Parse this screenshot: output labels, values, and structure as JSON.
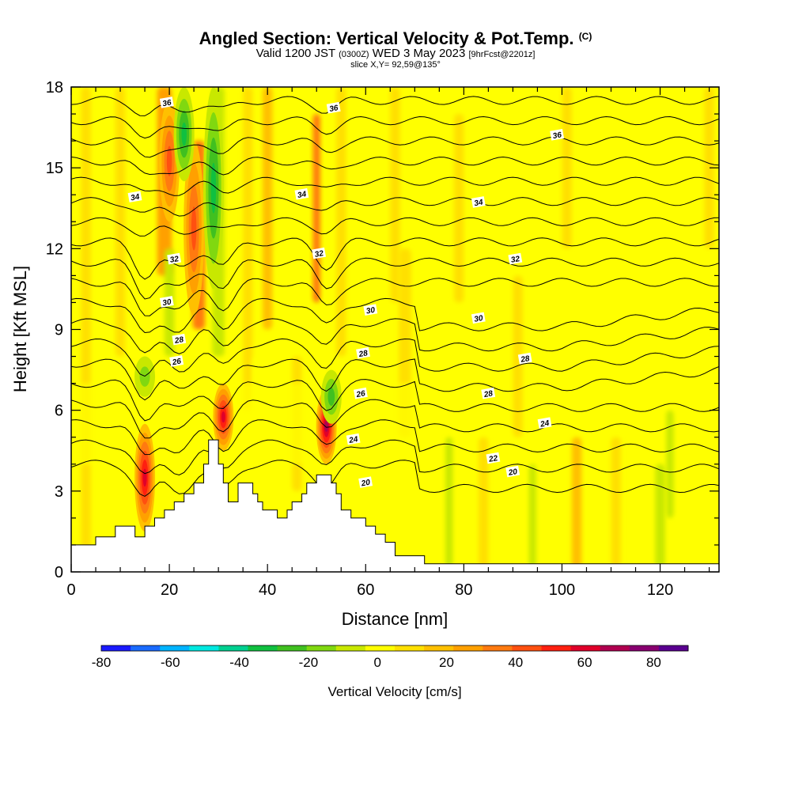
{
  "header": {
    "title": "Angled Section: Vertical Velocity & Pot.Temp.",
    "title_units": "(C)",
    "valid_prefix": "Valid 1200 JST",
    "valid_zulu": "(0300Z)",
    "valid_date": "WED 3 May 2023",
    "forecast": "[9hrFcst@2201z]",
    "slice": "slice X,Y= 92,59@135°"
  },
  "chart_data": {
    "type": "heatmap",
    "title": "Angled Section: Vertical Velocity & Pot.Temp. (C)",
    "xlabel": "Distance [nm]",
    "ylabel": "Height [Kft MSL]",
    "xlim": [
      0,
      132
    ],
    "ylim": [
      0,
      18
    ],
    "x_ticks": [
      0,
      20,
      40,
      60,
      80,
      100,
      120
    ],
    "y_ticks": [
      0,
      3,
      6,
      9,
      12,
      15,
      18
    ],
    "colorbar": {
      "label": "Vertical Velocity [cm/s]",
      "ticks": [
        -80,
        -60,
        -40,
        -20,
        0,
        20,
        40,
        60,
        80
      ],
      "colors": [
        "#1a1aff",
        "#1a6bff",
        "#00b4ff",
        "#00e8e0",
        "#00d090",
        "#10c040",
        "#40c020",
        "#80d810",
        "#c8e800",
        "#ffff00",
        "#ffe000",
        "#ffc000",
        "#ffa000",
        "#ff7a10",
        "#ff5010",
        "#ff2010",
        "#e0002a",
        "#b00050",
        "#880070",
        "#5a0090"
      ]
    },
    "updrafts": [
      {
        "x": 15,
        "y_range": [
          1.5,
          5.5
        ],
        "peak_cm_s": 60
      },
      {
        "x": 31,
        "y_range": [
          4.5,
          7.0
        ],
        "peak_cm_s": 60
      },
      {
        "x": 52,
        "y_range": [
          4.0,
          6.8
        ],
        "peak_cm_s": 65
      },
      {
        "x": 25,
        "y_range": [
          9.5,
          16.0
        ],
        "peak_cm_s": 40
      },
      {
        "x": 20,
        "y_range": [
          13.0,
          17.5
        ],
        "peak_cm_s": 35
      }
    ],
    "downdrafts": [
      {
        "x": 23,
        "y_range": [
          14.5,
          18.0
        ],
        "peak_cm_s": -40
      },
      {
        "x": 29,
        "y_range": [
          10.5,
          18.0
        ],
        "peak_cm_s": -35
      },
      {
        "x": 53,
        "y_range": [
          5.5,
          7.5
        ],
        "peak_cm_s": -30
      },
      {
        "x": 15,
        "y_range": [
          6.5,
          8.0
        ],
        "peak_cm_s": -20
      }
    ],
    "terrain": [
      [
        0,
        1.0
      ],
      [
        5,
        1.0
      ],
      [
        5,
        1.3
      ],
      [
        9,
        1.3
      ],
      [
        9,
        1.7
      ],
      [
        13,
        1.7
      ],
      [
        13,
        1.3
      ],
      [
        15,
        1.3
      ],
      [
        15,
        1.7
      ],
      [
        17,
        1.7
      ],
      [
        17,
        2.0
      ],
      [
        19,
        2.0
      ],
      [
        19,
        2.3
      ],
      [
        21,
        2.3
      ],
      [
        21,
        2.6
      ],
      [
        23,
        2.6
      ],
      [
        23,
        2.9
      ],
      [
        25,
        2.9
      ],
      [
        25,
        3.3
      ],
      [
        27,
        3.3
      ],
      [
        27,
        4.0
      ],
      [
        28,
        4.0
      ],
      [
        28,
        4.9
      ],
      [
        30,
        4.9
      ],
      [
        30,
        4.0
      ],
      [
        31,
        4.0
      ],
      [
        31,
        3.3
      ],
      [
        32,
        3.3
      ],
      [
        32,
        2.6
      ],
      [
        34,
        2.6
      ],
      [
        34,
        3.3
      ],
      [
        37,
        3.3
      ],
      [
        37,
        2.9
      ],
      [
        38,
        2.9
      ],
      [
        38,
        2.6
      ],
      [
        39,
        2.6
      ],
      [
        39,
        2.3
      ],
      [
        42,
        2.3
      ],
      [
        42,
        2.0
      ],
      [
        44,
        2.0
      ],
      [
        44,
        2.3
      ],
      [
        45,
        2.3
      ],
      [
        45,
        2.6
      ],
      [
        47,
        2.6
      ],
      [
        47,
        2.9
      ],
      [
        48,
        2.9
      ],
      [
        48,
        3.3
      ],
      [
        50,
        3.3
      ],
      [
        50,
        3.6
      ],
      [
        53,
        3.6
      ],
      [
        53,
        3.3
      ],
      [
        54,
        3.3
      ],
      [
        54,
        2.9
      ],
      [
        55,
        2.9
      ],
      [
        55,
        2.3
      ],
      [
        57,
        2.3
      ],
      [
        57,
        2.0
      ],
      [
        60,
        2.0
      ],
      [
        60,
        1.7
      ],
      [
        62,
        1.7
      ],
      [
        62,
        1.4
      ],
      [
        64,
        1.4
      ],
      [
        64,
        1.1
      ],
      [
        66,
        1.1
      ],
      [
        66,
        0.6
      ],
      [
        72,
        0.6
      ],
      [
        72,
        0.3
      ],
      [
        132,
        0.3
      ]
    ],
    "theta_contours": {
      "levels": [
        18,
        19,
        20,
        21,
        22,
        23,
        24,
        25,
        26,
        27,
        28,
        29,
        30,
        31,
        32,
        33,
        34,
        35,
        36
      ],
      "labeled": [
        20,
        22,
        24,
        26,
        28,
        30,
        32,
        34,
        36
      ],
      "labels": [
        {
          "text": "36",
          "x": 19.5,
          "y": 17.4
        },
        {
          "text": "36",
          "x": 53.5,
          "y": 17.2
        },
        {
          "text": "36",
          "x": 99,
          "y": 16.2
        },
        {
          "text": "34",
          "x": 13,
          "y": 13.9
        },
        {
          "text": "34",
          "x": 47,
          "y": 14.0
        },
        {
          "text": "34",
          "x": 83,
          "y": 13.7
        },
        {
          "text": "32",
          "x": 21,
          "y": 11.6
        },
        {
          "text": "32",
          "x": 50.5,
          "y": 11.8
        },
        {
          "text": "32",
          "x": 90.5,
          "y": 11.6
        },
        {
          "text": "30",
          "x": 19.5,
          "y": 10.0
        },
        {
          "text": "30",
          "x": 61,
          "y": 9.7
        },
        {
          "text": "30",
          "x": 83,
          "y": 9.4
        },
        {
          "text": "28",
          "x": 22,
          "y": 8.6
        },
        {
          "text": "28",
          "x": 59.5,
          "y": 8.1
        },
        {
          "text": "28",
          "x": 92.5,
          "y": 7.9
        },
        {
          "text": "26",
          "x": 21.5,
          "y": 7.8
        },
        {
          "text": "26",
          "x": 59,
          "y": 6.6
        },
        {
          "text": "28",
          "x": 85,
          "y": 6.6
        },
        {
          "text": "24",
          "x": 57.5,
          "y": 4.9
        },
        {
          "text": "24",
          "x": 96.5,
          "y": 5.5
        },
        {
          "text": "22",
          "x": 86,
          "y": 4.2
        },
        {
          "text": "20",
          "x": 60,
          "y": 3.3
        },
        {
          "text": "20",
          "x": 90,
          "y": 3.7
        }
      ]
    }
  }
}
